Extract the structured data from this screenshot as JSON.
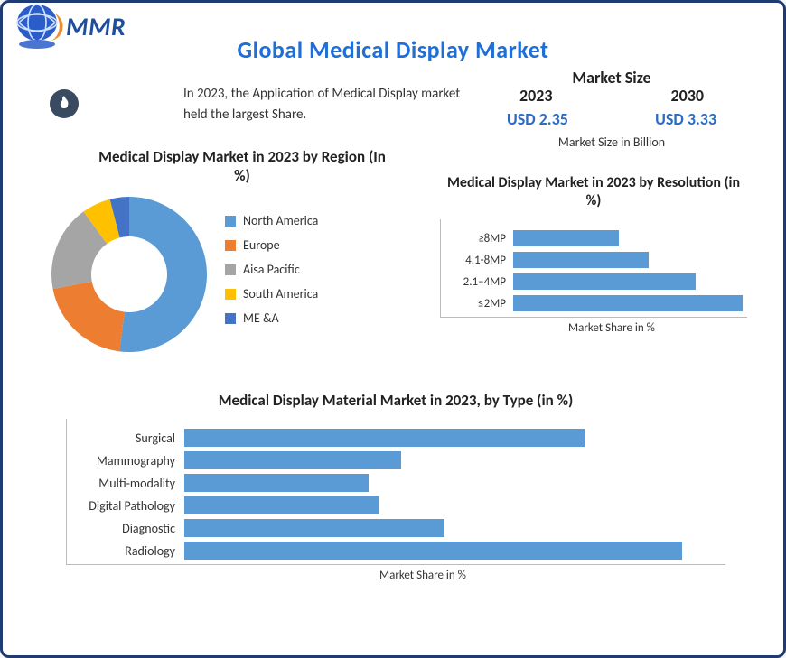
{
  "title": "Global Medical Display Market",
  "logo_text": "MMR",
  "intro": "In 2023, the Application of Medical Display market held the largest Share.",
  "market_size": {
    "heading": "Market Size",
    "year1": "2023",
    "year2": "2030",
    "value1": "USD 2.35",
    "value2": "USD 3.33",
    "note": "Market Size in Billion"
  },
  "colors": {
    "bar": "#5b9bd5",
    "title": "#1f6fd6",
    "value": "#2a6bc4",
    "border": "#1f3b73",
    "axis": "#bbbbbb"
  },
  "donut": {
    "title": "Medical Display Market in 2023 by Region (In %)",
    "inner_radius": 42,
    "outer_radius": 86,
    "background": "#ffffff",
    "slices": [
      {
        "label": "North America",
        "value": 52,
        "color": "#5b9bd5"
      },
      {
        "label": "Europe",
        "value": 20,
        "color": "#ed7d31"
      },
      {
        "label": "Aisa Pacific",
        "value": 18,
        "color": "#a5a5a5"
      },
      {
        "label": "South America",
        "value": 6,
        "color": "#ffc000"
      },
      {
        "label": "ME &A",
        "value": 4,
        "color": "#4472c4"
      }
    ],
    "legend_marker": "square",
    "legend_fontsize": 14
  },
  "resolution_chart": {
    "title": "Medical Display Market in 2023 by Resolution (in %)",
    "label_fontsize": 13,
    "bar_color": "#5b9bd5",
    "xlim": 100,
    "axis_caption": "Market Share in %",
    "bars": [
      {
        "label": "≥8MP",
        "value": 45
      },
      {
        "label": "4.1-8MP",
        "value": 58
      },
      {
        "label": "2.1–4MP",
        "value": 78
      },
      {
        "label": "≤2MP",
        "value": 98
      }
    ]
  },
  "type_chart": {
    "title": "Medical Display Material Market in 2023, by Type (in %)",
    "label_fontsize": 14,
    "bar_color": "#5b9bd5",
    "xlim": 100,
    "axis_caption": "Market  Share in %",
    "bars": [
      {
        "label": "Surgical",
        "value": 74
      },
      {
        "label": "Mammography",
        "value": 40
      },
      {
        "label": "Multi-modality",
        "value": 34
      },
      {
        "label": "Digital Pathology",
        "value": 36
      },
      {
        "label": "Diagnostic",
        "value": 48
      },
      {
        "label": "Radiology",
        "value": 92
      }
    ]
  }
}
